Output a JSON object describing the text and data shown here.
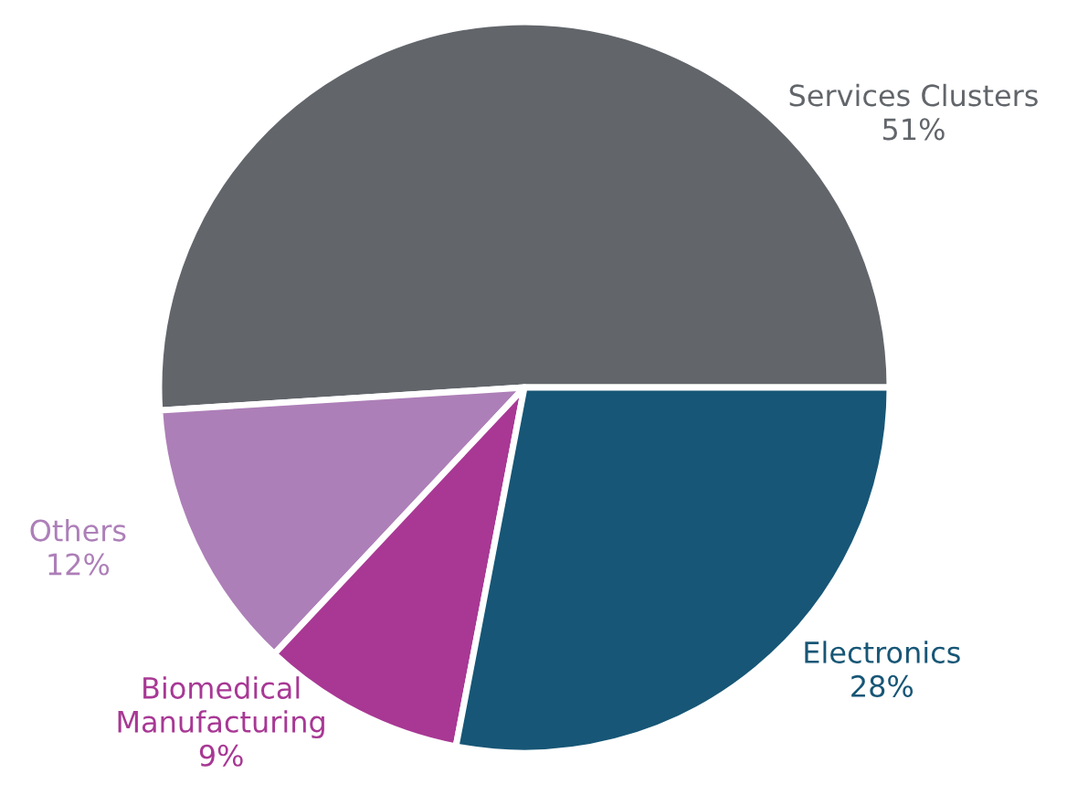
{
  "chart_data": {
    "type": "pie",
    "categories": [
      "Services Clusters",
      "Others",
      "Biomedical\nManufacturing",
      "Electronics"
    ],
    "values": [
      51,
      12,
      9,
      28
    ],
    "colors": [
      "#62666b",
      "#ad7fb8",
      "#a83894",
      "#175676"
    ],
    "value_labels": [
      "51%",
      "12%",
      "9%",
      "28%"
    ],
    "legend": false
  }
}
